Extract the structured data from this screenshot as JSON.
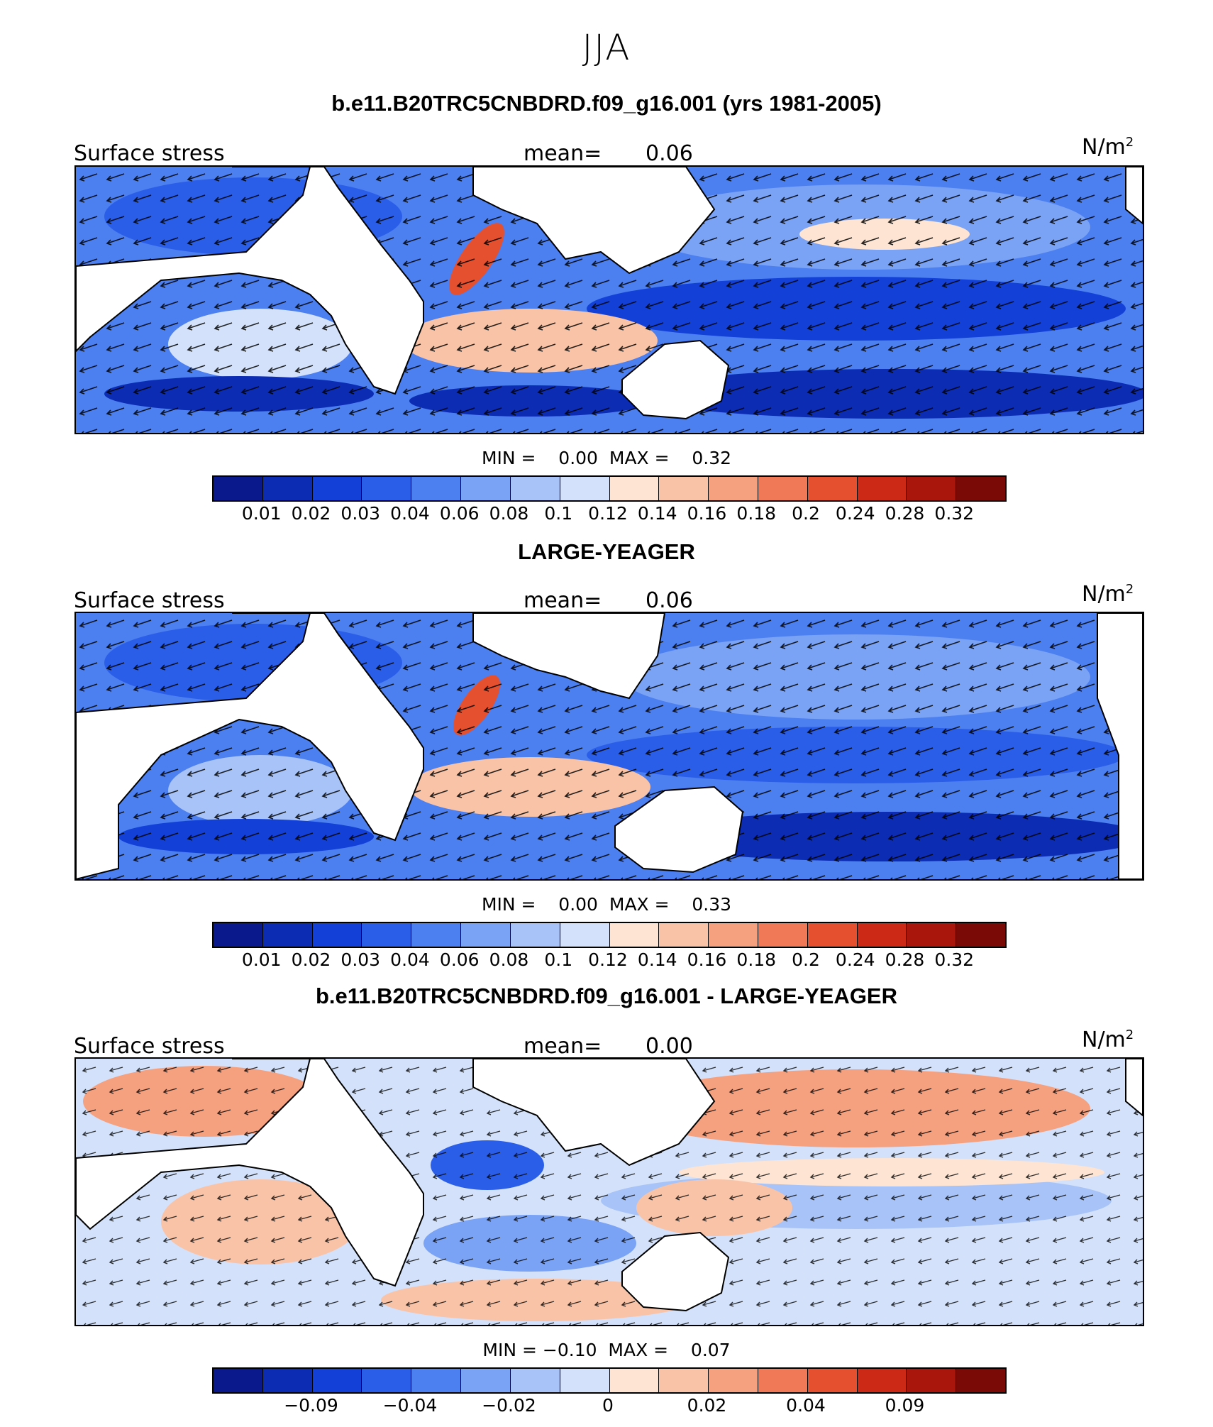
{
  "season": "JJA",
  "panels": [
    {
      "title": "b.e11.B20TRC5CNBDRD.f09_g16.001 (yrs 1981-2005)",
      "variable": "Surface stress",
      "mean_label": "mean=",
      "mean_value": "0.06",
      "units": "N/m",
      "units_sup": "2",
      "min_label": "MIN =",
      "min_value": "0.00",
      "max_label": "MAX =",
      "max_value": "0.32",
      "colorbar_ticks": [
        "0.01",
        "0.02",
        "0.03",
        "0.04",
        "0.06",
        "0.08",
        "0.1",
        "0.12",
        "0.14",
        "0.16",
        "0.18",
        "0.2",
        "0.24",
        "0.28",
        "0.32"
      ]
    },
    {
      "title": "LARGE-YEAGER",
      "variable": "Surface stress",
      "mean_label": "mean=",
      "mean_value": "0.06",
      "units": "N/m",
      "units_sup": "2",
      "min_label": "MIN =",
      "min_value": "0.00",
      "max_label": "MAX =",
      "max_value": "0.33",
      "colorbar_ticks": [
        "0.01",
        "0.02",
        "0.03",
        "0.04",
        "0.06",
        "0.08",
        "0.1",
        "0.12",
        "0.14",
        "0.16",
        "0.18",
        "0.2",
        "0.24",
        "0.28",
        "0.32"
      ]
    },
    {
      "title": "b.e11.B20TRC5CNBDRD.f09_g16.001 - LARGE-YEAGER",
      "variable": "Surface stress",
      "mean_label": "mean=",
      "mean_value": "0.00",
      "units": "N/m",
      "units_sup": "2",
      "min_label": "MIN =",
      "min_value": "−0.10",
      "max_label": "MAX =",
      "max_value": "0.07",
      "colorbar_ticks": [
        "−0.09",
        "−0.04",
        "−0.02",
        "0",
        "0.02",
        "0.04",
        "0.09"
      ]
    }
  ],
  "colorbar_colors": [
    "#0a1a8c",
    "#0b2cb3",
    "#1340d6",
    "#2a5ee8",
    "#4c7ff0",
    "#7aa2f5",
    "#a8c3f7",
    "#d3e2fa",
    "#fde4d3",
    "#f9c3a8",
    "#f5a07f",
    "#f07a57",
    "#e5502f",
    "#cc2a17",
    "#a8160c",
    "#7a0a05"
  ],
  "land_color": "#ffffff",
  "ocean_base_color": "#7aa2f5"
}
